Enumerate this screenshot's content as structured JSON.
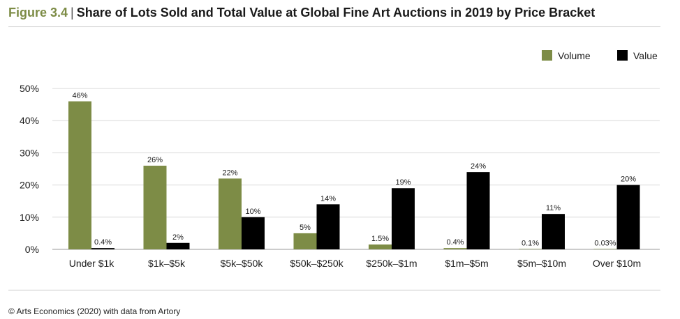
{
  "header": {
    "figure_label": "Figure 3.4",
    "separator": "|",
    "title": "Share of Lots Sold and Total Value at Global Fine Art Auctions in 2019 by Price Bracket"
  },
  "colors": {
    "volume": "#7d8c46",
    "value": "#000000",
    "grid": "#d9d9d9",
    "axis": "#999999"
  },
  "chart_data": {
    "type": "bar",
    "categories": [
      "Under $1k",
      "$1k–$5k",
      "$5k–$50k",
      "$50k–$250k",
      "$250k–$1m",
      "$1m–$5m",
      "$5m–$10m",
      "Over $10m"
    ],
    "series": [
      {
        "name": "Volume",
        "values": [
          46,
          26,
          22,
          5,
          1.5,
          0.4,
          0.1,
          0.03
        ],
        "labels": [
          "46%",
          "26%",
          "22%",
          "5%",
          "1.5%",
          "0.4%",
          "0.1%",
          "0.03%"
        ]
      },
      {
        "name": "Value",
        "values": [
          0.4,
          2,
          10,
          14,
          19,
          24,
          11,
          20
        ],
        "labels": [
          "0.4%",
          "2%",
          "10%",
          "14%",
          "19%",
          "24%",
          "11%",
          "20%"
        ]
      }
    ],
    "yticks": [
      0,
      10,
      20,
      30,
      40,
      50
    ],
    "ytick_labels": [
      "0%",
      "10%",
      "20%",
      "30%",
      "40%",
      "50%"
    ],
    "ylim": [
      0,
      50
    ],
    "grid": true,
    "legend_position": "top-right"
  },
  "footer": {
    "source": "© Arts Economics (2020) with data from Artory"
  }
}
